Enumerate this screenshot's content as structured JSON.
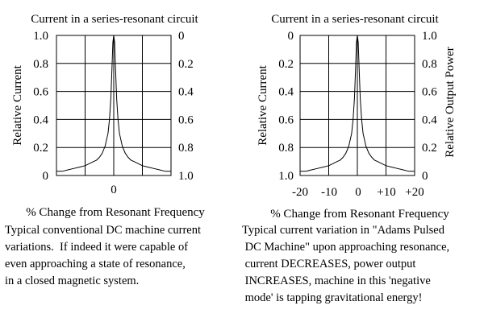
{
  "chart_data": [
    {
      "type": "line",
      "title": "Current in a series-resonant circuit",
      "xlabel": "% Change from Resonant Frequency",
      "ylabel": "Relative Current",
      "left_ticks": [
        "1.0",
        "0.8",
        "0.6",
        "0.4",
        "0.2",
        "0"
      ],
      "right_ticks": [
        "0",
        "0.2",
        "0.4",
        "0.6",
        "0.8",
        "1.0"
      ],
      "x_ticks": [
        "0"
      ],
      "xlim": [
        -20,
        20
      ],
      "ylim": [
        0,
        1
      ],
      "grid": true,
      "series": [
        {
          "x": [
            -20,
            -18,
            -16,
            -14,
            -12,
            -10,
            -8,
            -7,
            -6,
            -5,
            -4,
            -3,
            -2,
            -1.5,
            -1,
            -0.6,
            -0.3,
            0,
            0.3,
            0.6,
            1,
            1.5,
            2,
            3,
            4,
            5,
            6,
            7,
            8,
            10,
            12,
            14,
            16,
            18,
            20
          ],
          "y": [
            0.03,
            0.03,
            0.04,
            0.05,
            0.06,
            0.07,
            0.09,
            0.1,
            0.11,
            0.13,
            0.16,
            0.21,
            0.3,
            0.4,
            0.55,
            0.78,
            0.95,
            1.0,
            0.95,
            0.78,
            0.55,
            0.4,
            0.3,
            0.21,
            0.16,
            0.13,
            0.11,
            0.1,
            0.09,
            0.07,
            0.06,
            0.05,
            0.04,
            0.03,
            0.03
          ]
        }
      ]
    },
    {
      "type": "line",
      "title": "Current in a series-resonant circuit",
      "xlabel": "% Change from Resonant Frequency",
      "ylabel": "Relative Current",
      "ylabel_right": "Relative Output Power",
      "left_ticks": [
        "0",
        "0.2",
        "0.4",
        "0.6",
        "0.8",
        "1.0"
      ],
      "right_ticks": [
        "1.0",
        "0.8",
        "0.6",
        "0.4",
        "0.2",
        "0"
      ],
      "x_ticks": [
        "-20",
        "-10",
        "0",
        "+10",
        "+20"
      ],
      "xlim": [
        -20,
        20
      ],
      "ylim": [
        0,
        1
      ],
      "grid": true,
      "series": [
        {
          "x": [
            -20,
            -18,
            -16,
            -14,
            -12,
            -10,
            -8,
            -7,
            -6,
            -5,
            -4,
            -3,
            -2,
            -1.5,
            -1,
            -0.6,
            -0.3,
            0,
            0.3,
            0.6,
            1,
            1.5,
            2,
            3,
            4,
            5,
            6,
            7,
            8,
            10,
            12,
            14,
            16,
            18,
            20
          ],
          "y": [
            0.03,
            0.03,
            0.04,
            0.05,
            0.06,
            0.07,
            0.09,
            0.1,
            0.11,
            0.13,
            0.16,
            0.21,
            0.3,
            0.4,
            0.55,
            0.78,
            0.95,
            1.0,
            0.95,
            0.78,
            0.55,
            0.4,
            0.3,
            0.21,
            0.16,
            0.13,
            0.11,
            0.1,
            0.09,
            0.07,
            0.06,
            0.05,
            0.04,
            0.03,
            0.03
          ]
        }
      ]
    }
  ],
  "captions": {
    "left": [
      "Typical conventional DC machine current",
      "variations.  If indeed it were capable of",
      "even approaching a state of resonance,",
      "in a closed magnetic system."
    ],
    "right": [
      "Typical current variation in \"Adams Pulsed",
      " DC Machine\" upon approaching resonance,",
      " current DECREASES, power output",
      " INCREASES, machine in this 'negative",
      " mode' is tapping gravitational energy!"
    ]
  }
}
